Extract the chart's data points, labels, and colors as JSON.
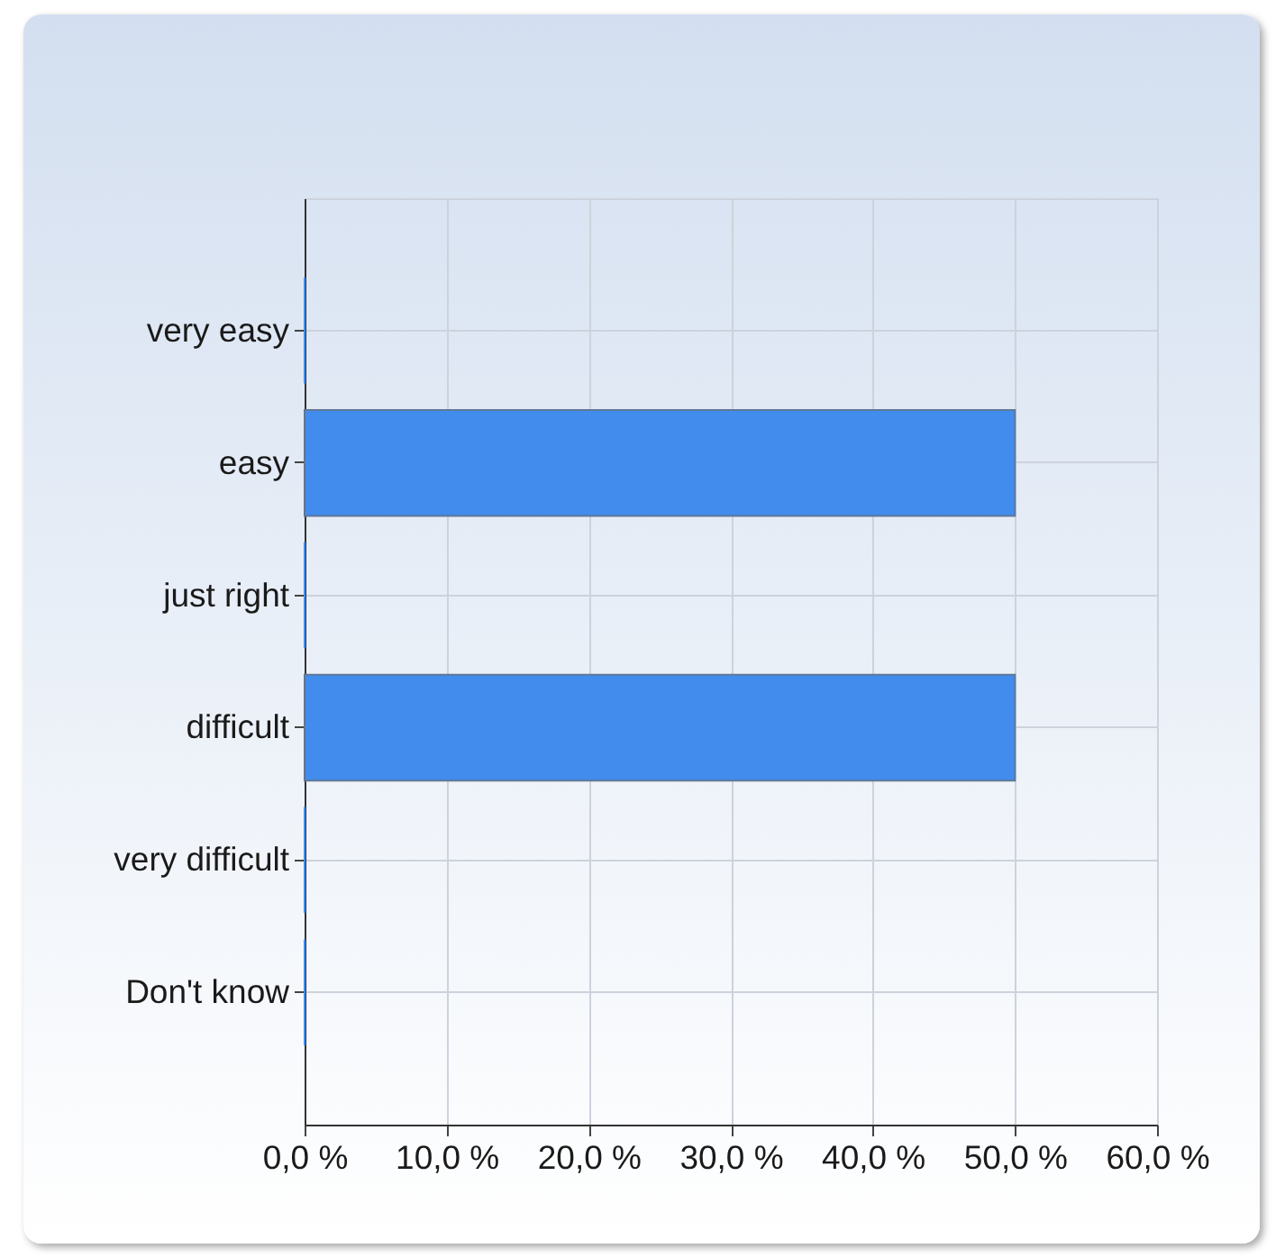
{
  "chart_data": {
    "type": "bar",
    "orientation": "horizontal",
    "categories": [
      "very easy",
      "easy",
      "just right",
      "difficult",
      "very difficult",
      "Don't know"
    ],
    "values": [
      0,
      50,
      0,
      50,
      0,
      0
    ],
    "color": "#418ced",
    "xlim": [
      0,
      60
    ],
    "xticks": [
      {
        "value": 0,
        "label": "0,0 %"
      },
      {
        "value": 10,
        "label": "10,0 %"
      },
      {
        "value": 20,
        "label": "20,0 %"
      },
      {
        "value": 30,
        "label": "30,0 %"
      },
      {
        "value": 40,
        "label": "40,0 %"
      },
      {
        "value": 50,
        "label": "50,0 %"
      },
      {
        "value": 60,
        "label": "60,0 %"
      }
    ],
    "grid": true
  }
}
